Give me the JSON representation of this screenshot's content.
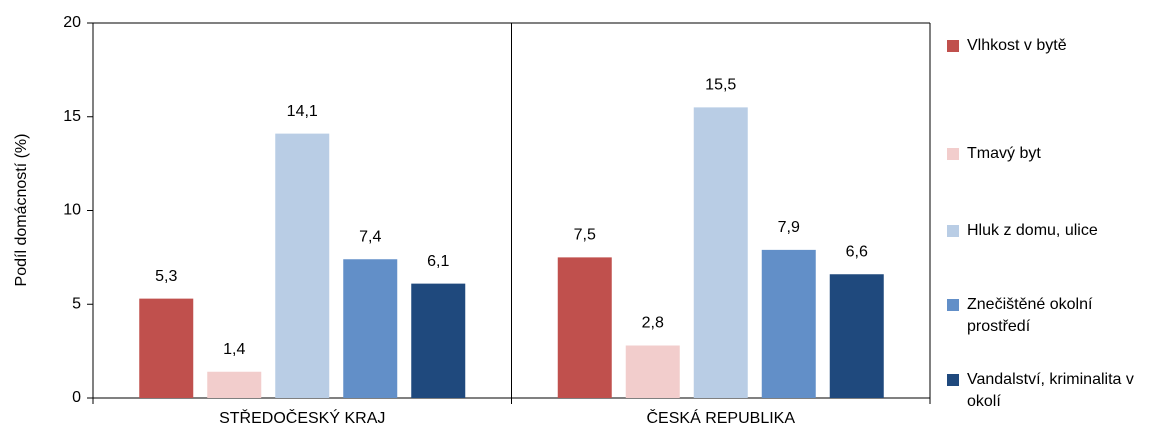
{
  "chart_data": {
    "type": "bar",
    "ylabel": "Podíl domácností (%)",
    "categories": [
      "STŘEDOČESKÝ KRAJ",
      "ČESKÁ REPUBLIKA"
    ],
    "series": [
      {
        "name": "Vlhkost v bytě",
        "color": "#c0504d",
        "values": [
          5.3,
          7.5
        ],
        "value_labels": [
          "5,3",
          "7,5"
        ]
      },
      {
        "name": "Tmavý byt",
        "color": "#f2cdcc",
        "values": [
          1.4,
          2.8
        ],
        "value_labels": [
          "1,4",
          "2,8"
        ]
      },
      {
        "name": "Hluk z domu, ulice",
        "color": "#b9cde5",
        "values": [
          14.1,
          15.5
        ],
        "value_labels": [
          "14,1",
          "15,5"
        ]
      },
      {
        "name": "Znečištěné okolní prostředí",
        "color": "#628fc8",
        "values": [
          7.4,
          7.9
        ],
        "value_labels": [
          "7,4",
          "7,9"
        ]
      },
      {
        "name": "Vandalství, kriminalita v okolí",
        "color": "#1f497d",
        "values": [
          6.1,
          6.6
        ],
        "value_labels": [
          "6,1",
          "6,6"
        ]
      }
    ],
    "ylim": [
      0,
      20
    ],
    "yticks": [
      0,
      5,
      10,
      15,
      20
    ],
    "legend": "right"
  }
}
